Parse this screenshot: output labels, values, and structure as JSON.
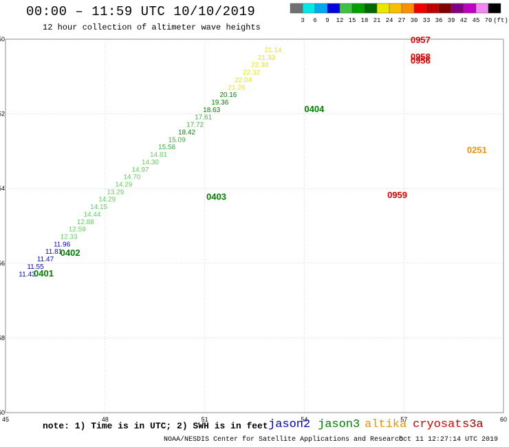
{
  "header": {
    "title": "00:00 – 11:59 UTC 10/10/2019",
    "subtitle": "12 hour collection of altimeter wave heights"
  },
  "color_scale": {
    "labels": [
      "3",
      "6",
      "9",
      "12",
      "15",
      "18",
      "21",
      "24",
      "27",
      "30",
      "33",
      "36",
      "39",
      "42",
      "45",
      "70",
      "(ft)"
    ],
    "colors": [
      "#707070",
      "#00e8e8",
      "#00a8f0",
      "#0000e0",
      "#40c040",
      "#00a000",
      "#006800",
      "#e8e800",
      "#f8c000",
      "#f89000",
      "#f00000",
      "#c00000",
      "#800000",
      "#800080",
      "#c000c0",
      "#f088f0",
      "#000000"
    ]
  },
  "axes": {
    "x_ticks": [
      "45",
      "48",
      "51",
      "54",
      "57",
      "60"
    ],
    "y_ticks": [
      "-50",
      "-52",
      "-54",
      "-56",
      "-58",
      "-60"
    ],
    "x_range": [
      45,
      60
    ],
    "y_range": [
      -60,
      -50
    ]
  },
  "footer": {
    "note": "note: 1) Time is in UTC; 2) SWH is in feet",
    "credit": "NOAA/NESDIS Center for Satellite Applications and Research",
    "timestamp": "Oct 11 12:27:14 UTC 2019"
  },
  "legend": [
    {
      "name": "jason2",
      "color": "#0000d0"
    },
    {
      "name": "jason3",
      "color": "#008000"
    },
    {
      "name": "altika",
      "color": "#f09000"
    },
    {
      "name": "cryosat",
      "color": "#e00000"
    },
    {
      "name": "s3a",
      "color": "#a00000"
    }
  ],
  "pass_labels": [
    {
      "text": "0957",
      "lon": 57.2,
      "lat": -50.1,
      "color": "#e00000"
    },
    {
      "text": "0958",
      "lon": 57.2,
      "lat": -50.55,
      "color": "#e00000"
    },
    {
      "text": "0956",
      "lon": 57.2,
      "lat": -50.65,
      "color": "#e00000"
    },
    {
      "text": "0404",
      "lon": 54.0,
      "lat": -51.95,
      "color": "#008000"
    },
    {
      "text": "0403",
      "lon": 51.05,
      "lat": -54.3,
      "color": "#008000"
    },
    {
      "text": "0402",
      "lon": 46.65,
      "lat": -55.8,
      "color": "#008000"
    },
    {
      "text": "0401",
      "lon": 45.85,
      "lat": -56.35,
      "color": "#008000"
    },
    {
      "text": "0959",
      "lon": 56.5,
      "lat": -54.25,
      "color": "#e00000"
    },
    {
      "text": "0251",
      "lon": 58.9,
      "lat": -53.05,
      "color": "#f09000"
    }
  ],
  "chart_data": {
    "type": "scatter",
    "xlabel": "",
    "ylabel": "",
    "xlim": [
      45,
      60
    ],
    "ylim": [
      -60,
      -50
    ],
    "series": [
      {
        "points": [
          {
            "lon": 45.4,
            "lat": -56.35,
            "v": "11.43"
          },
          {
            "lon": 45.65,
            "lat": -56.15,
            "v": "11.55"
          },
          {
            "lon": 45.95,
            "lat": -55.95,
            "v": "11.47"
          },
          {
            "lon": 46.2,
            "lat": -55.75,
            "v": "11.81"
          },
          {
            "lon": 46.45,
            "lat": -55.55,
            "v": "11.96"
          },
          {
            "lon": 46.65,
            "lat": -55.35,
            "v": "12.33"
          },
          {
            "lon": 46.9,
            "lat": -55.15,
            "v": "12.59"
          },
          {
            "lon": 47.15,
            "lat": -54.95,
            "v": "12.88"
          },
          {
            "lon": 47.35,
            "lat": -54.75,
            "v": "14.44"
          },
          {
            "lon": 47.55,
            "lat": -54.55,
            "v": "14.15"
          },
          {
            "lon": 47.8,
            "lat": -54.35,
            "v": "14.29"
          },
          {
            "lon": 48.05,
            "lat": -54.15,
            "v": "13.29"
          },
          {
            "lon": 48.3,
            "lat": -53.95,
            "v": "14.29"
          },
          {
            "lon": 48.55,
            "lat": -53.75,
            "v": "14.70"
          },
          {
            "lon": 48.8,
            "lat": -53.55,
            "v": "14.97"
          },
          {
            "lon": 49.1,
            "lat": -53.35,
            "v": "14.30"
          },
          {
            "lon": 49.35,
            "lat": -53.15,
            "v": "14.81"
          },
          {
            "lon": 49.6,
            "lat": -52.95,
            "v": "15.58"
          },
          {
            "lon": 49.9,
            "lat": -52.75,
            "v": "15.09"
          },
          {
            "lon": 50.2,
            "lat": -52.55,
            "v": "18.42"
          },
          {
            "lon": 50.45,
            "lat": -52.35,
            "v": "17.72"
          },
          {
            "lon": 50.7,
            "lat": -52.15,
            "v": "17.61"
          },
          {
            "lon": 50.95,
            "lat": -51.95,
            "v": "18.63"
          },
          {
            "lon": 51.2,
            "lat": -51.75,
            "v": "19.36"
          },
          {
            "lon": 51.45,
            "lat": -51.55,
            "v": "20.16"
          },
          {
            "lon": 51.7,
            "lat": -51.35,
            "v": "21.26"
          },
          {
            "lon": 51.9,
            "lat": -51.15,
            "v": "22.04"
          },
          {
            "lon": 52.15,
            "lat": -50.95,
            "v": "22.32"
          },
          {
            "lon": 52.4,
            "lat": -50.75,
            "v": "22.30"
          },
          {
            "lon": 52.6,
            "lat": -50.55,
            "v": "21.33"
          },
          {
            "lon": 52.8,
            "lat": -50.35,
            "v": "21.14"
          }
        ]
      }
    ]
  }
}
